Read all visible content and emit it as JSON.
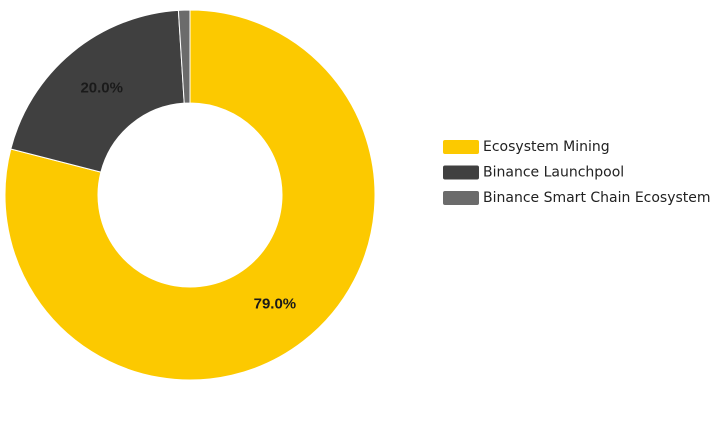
{
  "chart_data": {
    "type": "donut",
    "categories": [
      "Ecosystem Mining",
      "Binance Launchpool",
      "Binance Smart Chain Ecosystem"
    ],
    "values": [
      79.0,
      20.0,
      1.0
    ],
    "value_labels": [
      "79.0%",
      "20.0%",
      null
    ],
    "colors": [
      "#fcc900",
      "#404040",
      "#6b6b6b"
    ],
    "legend": "right"
  }
}
